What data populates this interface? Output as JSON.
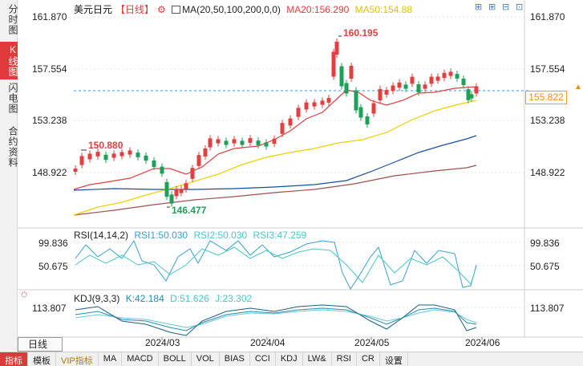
{
  "rail": {
    "tabs": [
      {
        "label": "分时图",
        "active": false
      },
      {
        "label": "K线图",
        "active": true
      },
      {
        "label": "闪电图",
        "active": false
      },
      {
        "label": "合约资料",
        "active": false
      }
    ]
  },
  "header": {
    "instrument": "美元日元",
    "period": "【日线】",
    "ma_params": "MA(20,50,100,200,0,0)",
    "ma20": "MA20:156.290",
    "ma50": "MA50:154.88"
  },
  "price_axis": [
    "161.870",
    "157.554",
    "153.238",
    "148.922"
  ],
  "current_price": "155.822",
  "annotations": {
    "high": "160.195",
    "low": "146.477",
    "left_high": "150.880"
  },
  "rsi": {
    "label": "RSI(14,14,2)",
    "rsi1": "RSI1:50.030",
    "rsi2": "RSI2:50.030",
    "rsi3": "RSI3:47.259",
    "axis_left": [
      "99.836",
      "50.675"
    ],
    "axis_right": [
      "99.836",
      "50.675"
    ]
  },
  "kdj": {
    "label": "KDJ(9,3,3)",
    "k": "K:42.184",
    "d": "D:51.626",
    "j": "J:23.302",
    "axis_left": [
      "113.807"
    ],
    "axis_right": [
      "113.807"
    ]
  },
  "dates": [
    "2024/03",
    "2024/04",
    "2024/05",
    "2024/06"
  ],
  "period_selector": "日线",
  "bottom_tabs": [
    {
      "label": "指标",
      "active": true
    },
    {
      "label": "模板",
      "active": false
    },
    {
      "label": "VIP指标",
      "active": false,
      "vip": true
    },
    {
      "label": "MA",
      "active": false
    },
    {
      "label": "MACD",
      "active": false
    },
    {
      "label": "BOLL",
      "active": false
    },
    {
      "label": "VOL",
      "active": false
    },
    {
      "label": "BIAS",
      "active": false
    },
    {
      "label": "CCI",
      "active": false
    },
    {
      "label": "KDJ",
      "active": false
    },
    {
      "label": "LW&",
      "active": false
    },
    {
      "label": "RSI",
      "active": false
    },
    {
      "label": "CR",
      "active": false
    },
    {
      "label": "设置",
      "active": false
    }
  ],
  "colors": {
    "up": "#e04040",
    "down": "#1ea05a",
    "ma20": "#e04040",
    "ma50": "#f0d000",
    "ma100": "#1a4fa0",
    "ma200": "#a05050"
  }
}
